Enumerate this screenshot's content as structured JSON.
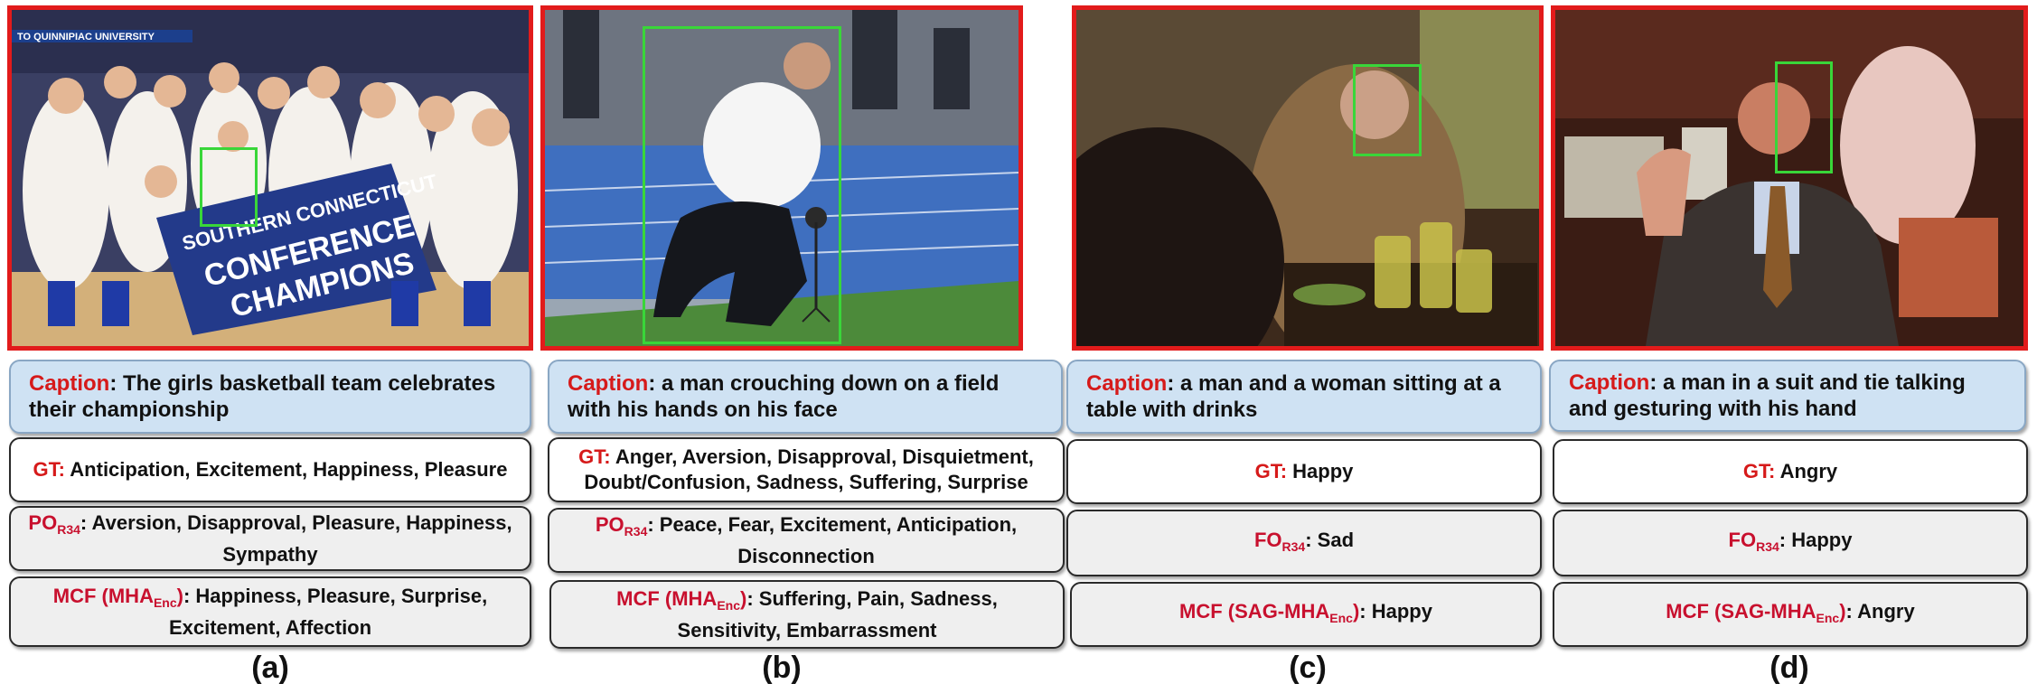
{
  "panels": [
    {
      "letter": "(a)",
      "caption_label": "Caption",
      "caption_text": ": The girls basketball team celebrates their championship",
      "gt_label": "GT:",
      "gt_text": " Anticipation, Excitement, Happiness, Pleasure",
      "p1_label": "PO",
      "p1_sub": "R34",
      "p1_text": ":  Aversion, Disapproval, Pleasure, Happiness, Sympathy",
      "p2_label": "MCF (MHA",
      "p2_sub": "Enc",
      "p2_close": ")",
      "p2_text": ": Happiness, Pleasure, Surprise, Excitement, Affection",
      "banner_top": "TO QUINNIPIAC UNIVERSITY",
      "banner_lines": [
        "SOUTHERN CONNECTICUT",
        "CONFERENCE",
        "CHAMPIONS"
      ]
    },
    {
      "letter": "(b)",
      "caption_label": "Caption",
      "caption_text": ": a man crouching down on a field with his hands on his face",
      "gt_label": "GT:",
      "gt_text": " Anger, Aversion, Disapproval, Disquietment, Doubt/Confusion, Sadness, Suffering, Surprise",
      "p1_label": "PO",
      "p1_sub": "R34",
      "p1_text": ":  Peace, Fear, Excitement, Anticipation, Disconnection",
      "p2_label": "MCF (MHA",
      "p2_sub": "Enc",
      "p2_close": ")",
      "p2_text": ": Suffering, Pain, Sadness, Sensitivity, Embarrassment"
    },
    {
      "letter": "(c)",
      "caption_label": "Caption",
      "caption_text": ": a man and a woman sitting at a table with drinks",
      "gt_label": "GT:",
      "gt_text": " Happy",
      "p1_label": "FO",
      "p1_sub": "R34",
      "p1_text": ":  Sad",
      "p2_label": "MCF (SAG-MHA",
      "p2_sub": "Enc",
      "p2_close": ")",
      "p2_text": ": Happy"
    },
    {
      "letter": "(d)",
      "caption_label": "Caption",
      "caption_text": ": a man in a suit and tie talking and gesturing with his hand",
      "gt_label": "GT:",
      "gt_text": " Angry",
      "p1_label": "FO",
      "p1_sub": "R34",
      "p1_text": ":  Happy",
      "p2_label": "MCF (SAG-MHA",
      "p2_sub": "Enc",
      "p2_close": ")",
      "p2_text": ": Angry"
    }
  ],
  "colors": {
    "frame": "#e21b1b",
    "face_box": "#39d639",
    "caption_bg": "#cfe2f3",
    "label_red": "#d61a1a"
  }
}
